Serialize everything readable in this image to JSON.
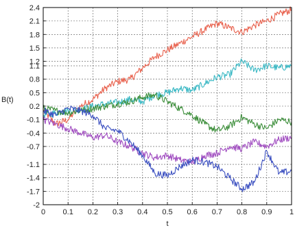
{
  "chart_data": {
    "type": "line",
    "xlabel": "t",
    "ylabel": "B(t)",
    "xlim": [
      0,
      1
    ],
    "ylim": [
      -2,
      2.4
    ],
    "grid": true,
    "xticks": [
      "0",
      "0.1",
      "0.2",
      "0.3",
      "0.4",
      "0.5",
      "0.6",
      "0.7",
      "0.8",
      "0.9",
      "1"
    ],
    "xtick_values": [
      0,
      0.1,
      0.2,
      0.3,
      0.4,
      0.5,
      0.6,
      0.7,
      0.8,
      0.9,
      1
    ],
    "yticks": [
      "2.4",
      "2.1",
      "1.8",
      "1.5",
      "1.2",
      "1.1",
      "0.8",
      "0.5",
      "0.2",
      "-0.1",
      "-0.4",
      "-0.7",
      "-1.1",
      "-1.4",
      "-1.7",
      "-2"
    ],
    "ytick_values": [
      2.4,
      2.1,
      1.8,
      1.5,
      1.2,
      1.1,
      0.8,
      0.5,
      0.2,
      -0.1,
      -0.4,
      -0.7,
      -1.1,
      -1.4,
      -1.7,
      -2
    ],
    "series": [
      {
        "color": "#e8604c",
        "x": [
          0,
          0.05,
          0.1,
          0.15,
          0.2,
          0.25,
          0.3,
          0.35,
          0.4,
          0.45,
          0.5,
          0.55,
          0.6,
          0.65,
          0.7,
          0.75,
          0.8,
          0.85,
          0.9,
          0.95,
          1.0
        ],
        "y": [
          0.1,
          -0.2,
          -0.1,
          0.2,
          0.35,
          0.6,
          0.75,
          0.8,
          1.05,
          1.3,
          1.45,
          1.6,
          1.75,
          1.9,
          2.05,
          1.95,
          1.85,
          2.0,
          2.1,
          2.25,
          2.35
        ]
      },
      {
        "color": "#3ab8c4",
        "x": [
          0,
          0.05,
          0.1,
          0.15,
          0.2,
          0.25,
          0.3,
          0.35,
          0.4,
          0.45,
          0.5,
          0.55,
          0.6,
          0.65,
          0.7,
          0.75,
          0.8,
          0.85,
          0.9,
          0.95,
          1.0
        ],
        "y": [
          0.0,
          0.05,
          0.1,
          0.12,
          0.2,
          0.25,
          0.28,
          0.35,
          0.3,
          0.45,
          0.5,
          0.6,
          0.55,
          0.7,
          0.85,
          0.9,
          1.2,
          1.0,
          1.1,
          1.05,
          1.1
        ]
      },
      {
        "color": "#3c8e3a",
        "x": [
          0,
          0.05,
          0.1,
          0.15,
          0.2,
          0.25,
          0.3,
          0.35,
          0.4,
          0.45,
          0.5,
          0.55,
          0.6,
          0.65,
          0.7,
          0.75,
          0.8,
          0.85,
          0.9,
          0.95,
          1.0
        ],
        "y": [
          0.15,
          0.1,
          0.05,
          0.1,
          0.15,
          0.2,
          0.25,
          0.3,
          0.4,
          0.45,
          0.3,
          0.15,
          0.0,
          -0.2,
          -0.35,
          -0.25,
          -0.05,
          -0.2,
          -0.3,
          -0.1,
          -0.15
        ]
      },
      {
        "color": "#a04cc0",
        "x": [
          0,
          0.05,
          0.1,
          0.15,
          0.2,
          0.25,
          0.3,
          0.35,
          0.4,
          0.45,
          0.5,
          0.55,
          0.6,
          0.65,
          0.7,
          0.75,
          0.8,
          0.85,
          0.9,
          0.95,
          1.0
        ],
        "y": [
          -0.1,
          -0.2,
          -0.3,
          -0.4,
          -0.5,
          -0.45,
          -0.6,
          -0.7,
          -0.85,
          -0.95,
          -0.9,
          -1.0,
          -1.05,
          -0.9,
          -0.85,
          -0.7,
          -0.75,
          -0.6,
          -0.7,
          -0.55,
          -0.5
        ]
      },
      {
        "color": "#3b4fc0",
        "x": [
          0,
          0.05,
          0.1,
          0.15,
          0.2,
          0.25,
          0.3,
          0.35,
          0.4,
          0.45,
          0.5,
          0.55,
          0.6,
          0.65,
          0.7,
          0.75,
          0.8,
          0.85,
          0.9,
          0.95,
          1.0
        ],
        "y": [
          0.1,
          0.0,
          0.15,
          0.1,
          0.0,
          -0.3,
          -0.35,
          -0.6,
          -0.9,
          -1.3,
          -1.35,
          -1.15,
          -1.0,
          -1.05,
          -1.15,
          -1.4,
          -1.65,
          -1.5,
          -0.8,
          -1.3,
          -1.25
        ]
      }
    ]
  }
}
